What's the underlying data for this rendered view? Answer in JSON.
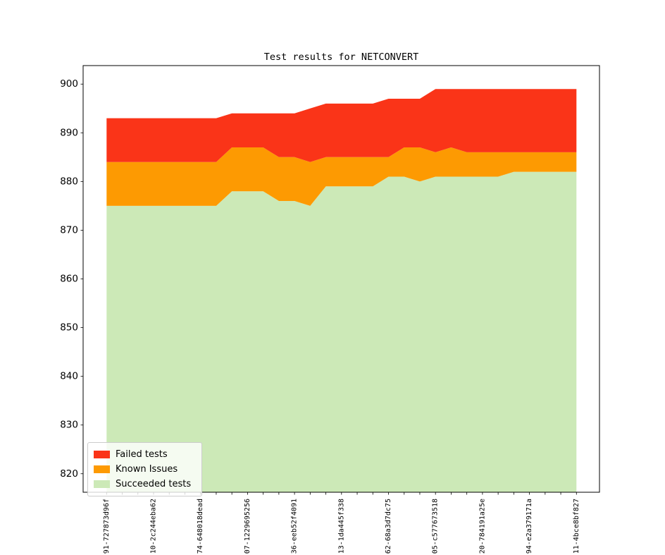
{
  "figure": {
    "background": "#ffffff",
    "plot_frame_color": "#000000"
  },
  "chart_data": {
    "type": "area",
    "stacked": true,
    "title": "Test results for NETCONVERT",
    "xlabel": "",
    "ylabel": "",
    "grid": false,
    "ylim": [
      816.2,
      903.8
    ],
    "yticks": [
      820,
      830,
      840,
      850,
      860,
      870,
      880,
      890,
      900
    ],
    "n_points": 31,
    "x_label_every": 3,
    "x_tick_labels": [
      "91-727873d96f",
      "",
      "",
      "10-2c244eba62",
      "",
      "",
      "74-648018dead",
      "",
      "",
      "07-1229695256",
      "",
      "",
      "36-eeb52f4091",
      "",
      "",
      "13-1da445f338",
      "",
      "",
      "62-68a3d7dc75",
      "",
      "",
      "05-c577673518",
      "",
      "",
      "20-784191a25e",
      "",
      "",
      "94-e2a379171a",
      "",
      "",
      "11-4bce8bf827"
    ],
    "series": [
      {
        "name": "Succeeded tests",
        "color": "#cce9b7",
        "values": [
          875,
          875,
          875,
          875,
          875,
          875,
          875,
          875,
          878,
          878,
          878,
          876,
          876,
          875,
          879,
          879,
          879,
          879,
          881,
          881,
          880,
          881,
          881,
          881,
          881,
          881,
          882,
          882,
          882,
          882,
          882
        ]
      },
      {
        "name": "Known Issues",
        "color": "#fd9a02",
        "values": [
          9,
          9,
          9,
          9,
          9,
          9,
          9,
          9,
          9,
          9,
          9,
          9,
          9,
          9,
          6,
          6,
          6,
          6,
          4,
          6,
          7,
          5,
          6,
          5,
          5,
          5,
          4,
          4,
          4,
          4,
          4
        ]
      },
      {
        "name": "Failed tests",
        "color": "#fa3418",
        "values": [
          9,
          9,
          9,
          9,
          9,
          9,
          9,
          9,
          7,
          7,
          7,
          9,
          9,
          11,
          11,
          11,
          11,
          11,
          12,
          10,
          10,
          13,
          12,
          13,
          13,
          13,
          13,
          13,
          13,
          13,
          13
        ]
      }
    ],
    "totals_top_boundary": [
      893,
      893,
      893,
      893,
      893,
      893,
      893,
      893,
      894,
      894,
      894,
      894,
      894,
      895,
      896,
      896,
      896,
      896,
      897,
      897,
      897,
      899,
      899,
      899,
      899,
      899,
      899,
      899,
      899,
      899,
      899
    ],
    "legend": {
      "position": "lower left",
      "entries": [
        {
          "label": "Failed tests",
          "color": "#fa3418"
        },
        {
          "label": "Known Issues",
          "color": "#fd9a02"
        },
        {
          "label": "Succeeded tests",
          "color": "#cce9b7"
        }
      ]
    }
  }
}
